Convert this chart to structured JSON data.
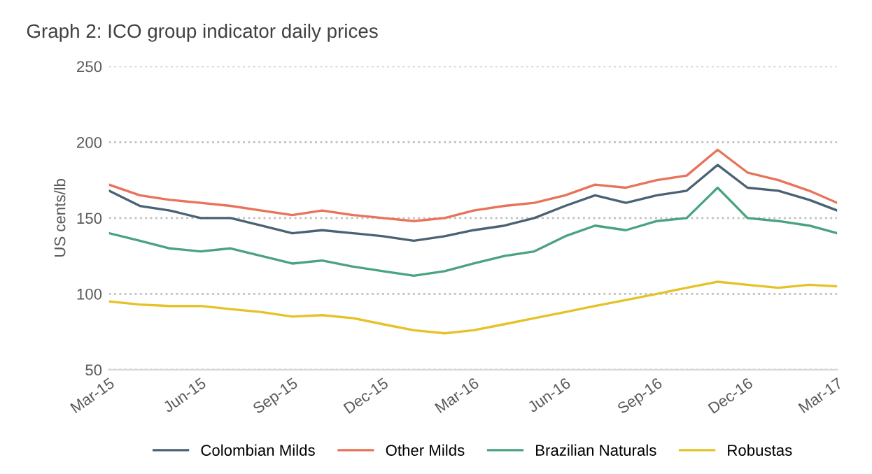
{
  "chart_data": {
    "type": "line",
    "title": "Graph 2: ICO group indicator daily prices",
    "ylabel": "US cents/lb",
    "x": [
      "2015-03",
      "2015-04",
      "2015-05",
      "2015-06",
      "2015-07",
      "2015-08",
      "2015-09",
      "2015-10",
      "2015-11",
      "2015-12",
      "2016-01",
      "2016-02",
      "2016-03",
      "2016-04",
      "2016-05",
      "2016-06",
      "2016-07",
      "2016-08",
      "2016-09",
      "2016-10",
      "2016-11",
      "2016-12",
      "2017-01",
      "2017-02",
      "2017-03"
    ],
    "series": [
      {
        "name": "Colombian Milds",
        "color": "#4a6274",
        "values": [
          168,
          158,
          155,
          150,
          150,
          145,
          140,
          142,
          140,
          138,
          135,
          138,
          142,
          145,
          150,
          158,
          165,
          160,
          165,
          168,
          185,
          170,
          168,
          162,
          155
        ]
      },
      {
        "name": "Other Milds",
        "color": "#e8735a",
        "values": [
          172,
          165,
          162,
          160,
          158,
          155,
          152,
          155,
          152,
          150,
          148,
          150,
          155,
          158,
          160,
          165,
          172,
          170,
          175,
          178,
          195,
          180,
          175,
          168,
          160
        ]
      },
      {
        "name": "Brazilian Naturals",
        "color": "#4aa37f",
        "values": [
          140,
          135,
          130,
          128,
          130,
          125,
          120,
          122,
          118,
          115,
          112,
          115,
          120,
          125,
          128,
          138,
          145,
          142,
          148,
          150,
          170,
          150,
          148,
          145,
          140
        ]
      },
      {
        "name": "Robustas",
        "color": "#e6c229",
        "values": [
          95,
          93,
          92,
          92,
          90,
          88,
          85,
          86,
          84,
          80,
          76,
          74,
          76,
          80,
          84,
          88,
          92,
          96,
          100,
          104,
          108,
          106,
          104,
          106,
          105
        ]
      }
    ],
    "xlim": [
      "2015-03",
      "2017-03"
    ],
    "xticks": [
      {
        "value": "2015-03",
        "label": "Mar-15"
      },
      {
        "value": "2015-06",
        "label": "Jun-15"
      },
      {
        "value": "2015-09",
        "label": "Sep-15"
      },
      {
        "value": "2015-12",
        "label": "Dec-15"
      },
      {
        "value": "2016-03",
        "label": "Mar-16"
      },
      {
        "value": "2016-06",
        "label": "Jun-16"
      },
      {
        "value": "2016-09",
        "label": "Sep-16"
      },
      {
        "value": "2016-12",
        "label": "Dec-16"
      },
      {
        "value": "2017-03",
        "label": "Mar-17"
      }
    ],
    "ylim": [
      50,
      250
    ],
    "yticks": [
      50,
      100,
      150,
      200,
      250
    ],
    "grid": "y",
    "legend": "bottom",
    "marker": "none",
    "line_style": "solid"
  }
}
